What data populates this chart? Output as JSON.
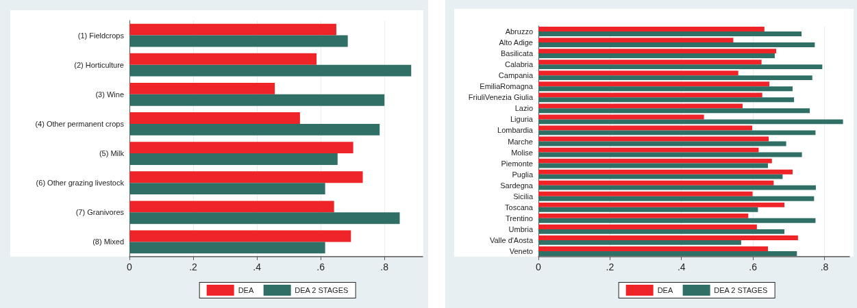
{
  "chart_data": [
    {
      "type": "bar",
      "orientation": "horizontal",
      "categories": [
        "(1) Fieldcrops",
        "(2) Horticulture",
        "(3) Wine",
        "(4) Other permanent crops",
        "(5) Milk",
        "(6) Other grazing livestock",
        "(7) Granivores",
        "(8) Mixed"
      ],
      "series": [
        {
          "name": "DEA",
          "color": "#ee2428",
          "values": [
            0.649,
            0.587,
            0.456,
            0.535,
            0.702,
            0.732,
            0.642,
            0.695
          ]
        },
        {
          "name": "DEA 2 STAGES",
          "color": "#2f6f66",
          "values": [
            0.685,
            0.884,
            0.8,
            0.785,
            0.653,
            0.614,
            0.848,
            0.614
          ]
        }
      ],
      "xlim": [
        0,
        0.92
      ],
      "xticks": [
        0,
        {
          "value": 0.2,
          "label": ".2"
        },
        {
          "value": 0.4,
          "label": ".4"
        },
        {
          "value": 0.6,
          "label": ".6"
        },
        {
          "value": 0.8,
          "label": ".8"
        }
      ],
      "grid": "x",
      "legend": "bottom"
    },
    {
      "type": "bar",
      "orientation": "horizontal",
      "categories": [
        "Abruzzo",
        "Alto Adige",
        "Basilicata",
        "Calabria",
        "Campania",
        "EmiliaRomagna",
        "FriuliVenezia Giulia",
        "Lazio",
        "Liguria",
        "Lombardia",
        "Marche",
        "Molise",
        "Piemonte",
        "Puglia",
        "Sardegna",
        "Sicilia",
        "Toscana",
        "Trentino",
        "Umbria",
        "Valle d'Aosta",
        "Veneto"
      ],
      "series": [
        {
          "name": "DEA",
          "color": "#ee2428",
          "values": [
            0.632,
            0.545,
            0.665,
            0.624,
            0.559,
            0.646,
            0.626,
            0.571,
            0.463,
            0.598,
            0.644,
            0.616,
            0.653,
            0.711,
            0.658,
            0.599,
            0.688,
            0.587,
            0.611,
            0.726,
            0.642
          ]
        },
        {
          "name": "DEA 2 STAGES",
          "color": "#2f6f66",
          "values": [
            0.736,
            0.773,
            0.661,
            0.794,
            0.766,
            0.711,
            0.715,
            0.759,
            0.852,
            0.775,
            0.693,
            0.737,
            0.642,
            0.683,
            0.776,
            0.771,
            0.614,
            0.775,
            0.688,
            0.567,
            0.723
          ]
        }
      ],
      "xlim": [
        0,
        0.87
      ],
      "xticks": [
        0,
        {
          "value": 0.2,
          "label": ".2"
        },
        {
          "value": 0.4,
          "label": ".4"
        },
        {
          "value": 0.6,
          "label": ".6"
        },
        {
          "value": 0.8,
          "label": ".8"
        }
      ],
      "grid": "x",
      "legend": "bottom"
    }
  ]
}
